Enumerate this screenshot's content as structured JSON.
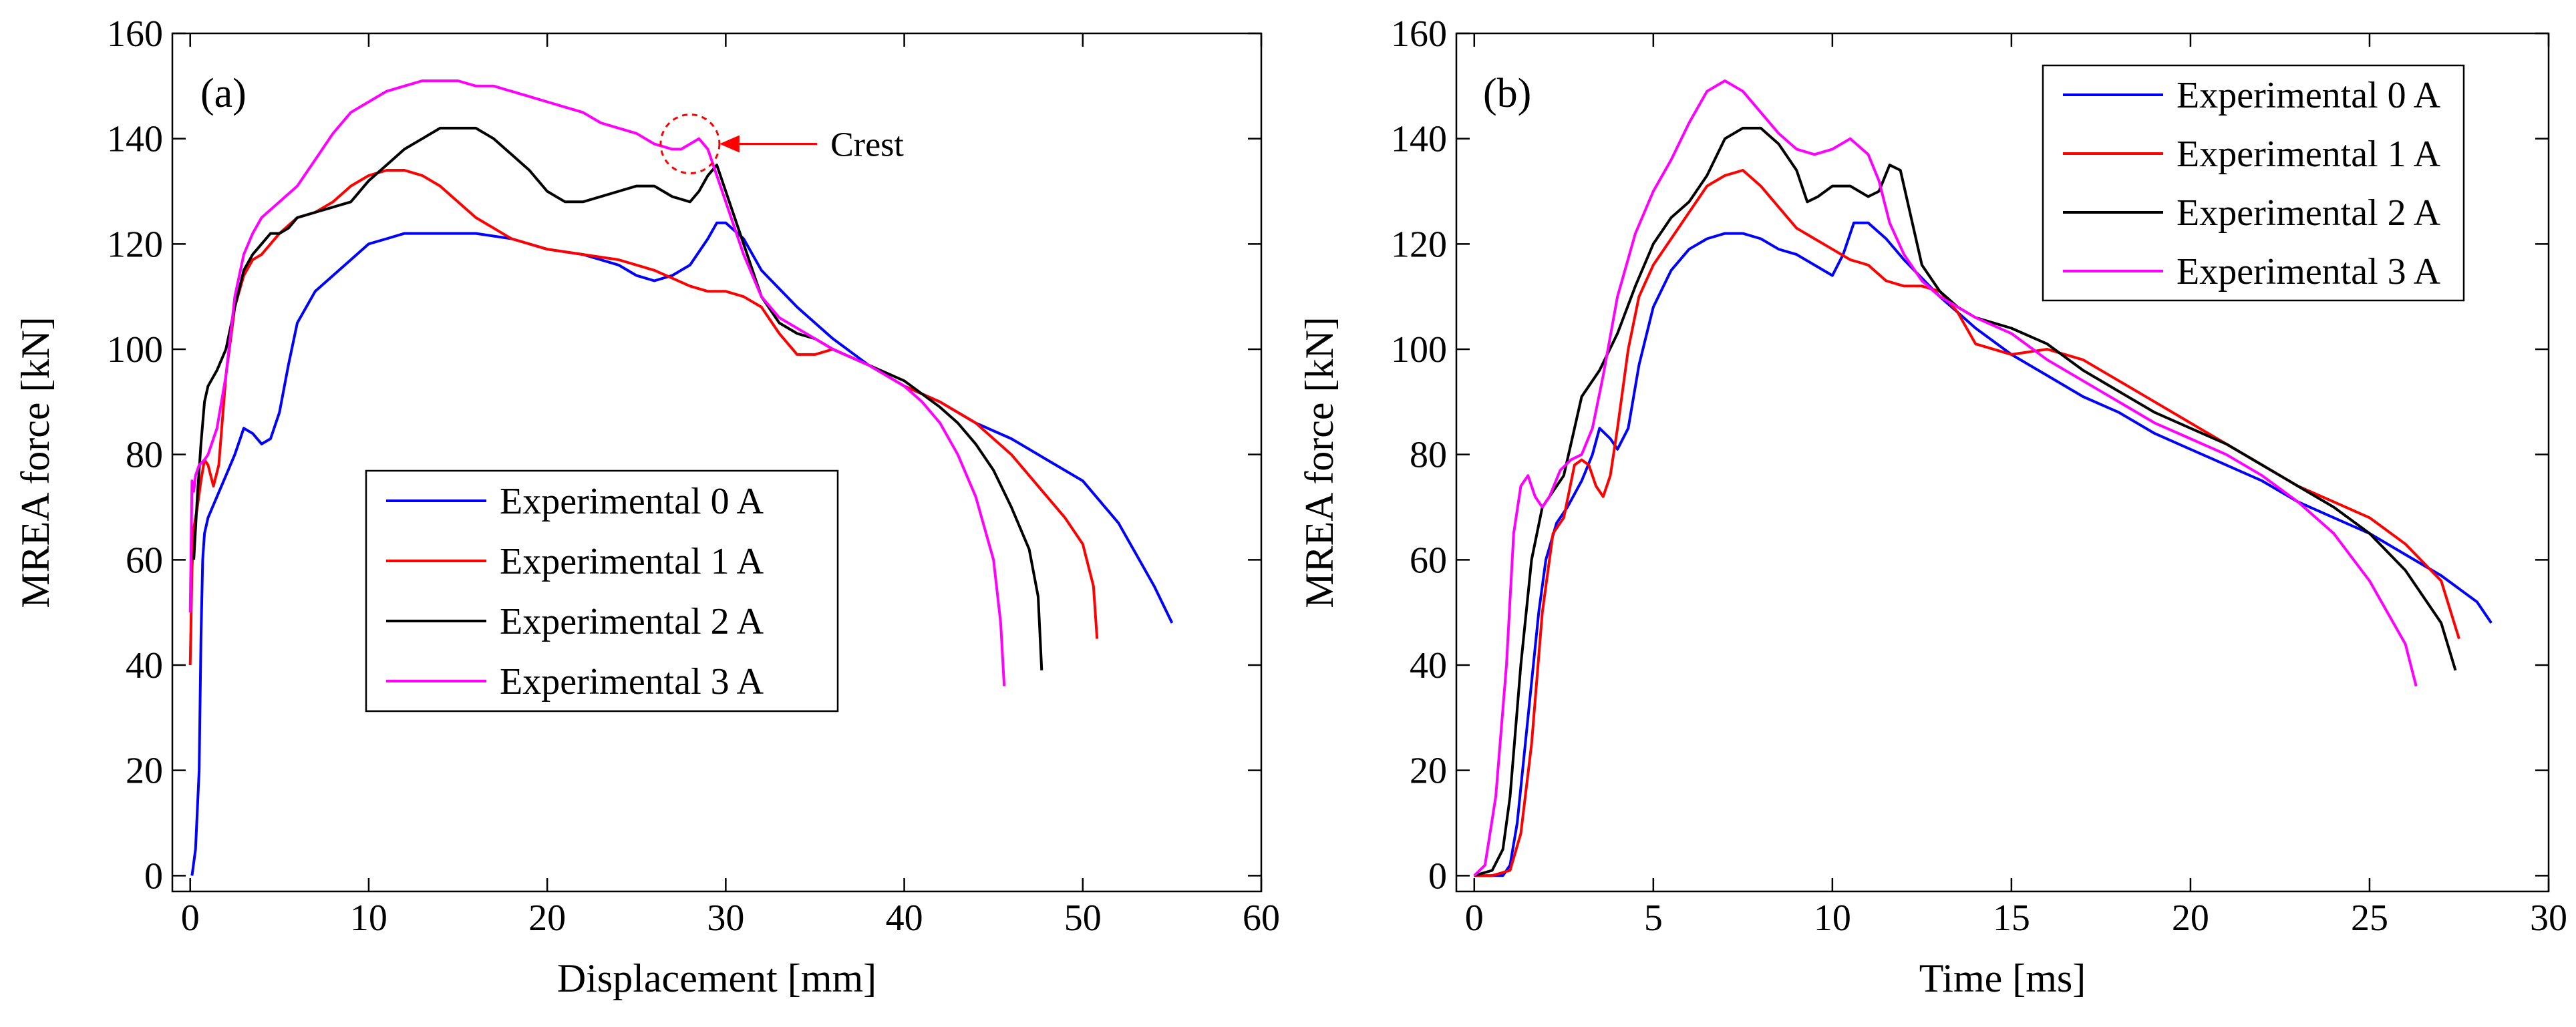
{
  "chart_data": [
    {
      "type": "line",
      "panel_label": "(a)",
      "xlabel": "Displacement [mm]",
      "ylabel": "MREA force [kN]",
      "xlim": [
        -1,
        60
      ],
      "ylim": [
        -3,
        160
      ],
      "xticks": [
        0,
        10,
        20,
        30,
        40,
        50,
        60
      ],
      "yticks": [
        0,
        20,
        40,
        60,
        80,
        100,
        120,
        140,
        160
      ],
      "legend_position": "center-left",
      "annotation": {
        "text": "Crest",
        "color": "#ff0000",
        "target": [
          28,
          139
        ],
        "label_at": [
          31,
          139
        ]
      },
      "series": [
        {
          "name": "Experimental 0 A",
          "color": "#0000ff",
          "x": [
            0.1,
            0.3,
            0.5,
            0.6,
            0.7,
            0.8,
            1.0,
            1.5,
            2.0,
            2.5,
            3.0,
            3.5,
            4.0,
            4.5,
            5.0,
            5.5,
            6.0,
            7.0,
            8.0,
            9.0,
            10.0,
            11.0,
            12.0,
            14.0,
            16.0,
            18.0,
            20.0,
            22.0,
            24.0,
            25.0,
            26.0,
            27.0,
            28.0,
            29.0,
            29.5,
            30.0,
            31.0,
            32.0,
            34.0,
            36.0,
            38.0,
            40.0,
            42.0,
            44.0,
            46.0,
            48.0,
            50.0,
            52.0,
            53.0,
            54.0,
            55.0
          ],
          "y": [
            0,
            5,
            20,
            45,
            60,
            65,
            68,
            72,
            76,
            80,
            85,
            84,
            82,
            83,
            88,
            97,
            105,
            111,
            114,
            117,
            120,
            121,
            122,
            122,
            122,
            121,
            119,
            118,
            116,
            114,
            113,
            114,
            116,
            121,
            124,
            124,
            121,
            115,
            108,
            102,
            97,
            93,
            90,
            86,
            83,
            79,
            75,
            67,
            61,
            55,
            48
          ]
        },
        {
          "name": "Experimental 1 A",
          "color": "#ff0000",
          "x": [
            0.0,
            0.1,
            0.2,
            0.4,
            0.6,
            0.8,
            1.0,
            1.3,
            1.6,
            2.0,
            2.5,
            3.0,
            3.5,
            4.0,
            5.0,
            6.0,
            7.0,
            8.0,
            9.0,
            10.0,
            11.0,
            12.0,
            13.0,
            14.0,
            15.0,
            16.0,
            17.0,
            18.0,
            20.0,
            22.0,
            24.0,
            26.0,
            28.0,
            29.0,
            30.0,
            31.0,
            32.0,
            33.0,
            34.0,
            35.0,
            36.0,
            38.0,
            40.0,
            42.0,
            44.0,
            46.0,
            48.0,
            49.0,
            50.0,
            50.6,
            50.8
          ],
          "y": [
            40,
            58,
            66,
            70,
            75,
            79,
            78,
            74,
            78,
            95,
            108,
            114,
            117,
            118,
            122,
            125,
            126,
            128,
            131,
            133,
            134,
            134,
            133,
            131,
            128,
            125,
            123,
            121,
            119,
            118,
            117,
            115,
            112,
            111,
            111,
            110,
            108,
            103,
            99,
            99,
            100,
            97,
            93,
            90,
            86,
            80,
            72,
            68,
            63,
            55,
            45
          ]
        },
        {
          "name": "Experimental 2 A",
          "color": "#000000",
          "x": [
            0.2,
            0.4,
            0.6,
            0.8,
            1.0,
            1.5,
            2.0,
            2.5,
            3.0,
            3.5,
            4.0,
            4.5,
            5.0,
            5.5,
            6.0,
            7.0,
            8.0,
            9.0,
            10.0,
            11.0,
            12.0,
            13.0,
            14.0,
            15.0,
            16.0,
            17.0,
            18.0,
            19.0,
            20.0,
            21.0,
            22.0,
            23.0,
            24.0,
            25.0,
            26.0,
            27.0,
            28.0,
            28.5,
            29.0,
            29.5,
            30.0,
            31.0,
            32.0,
            33.0,
            34.0,
            35.0,
            36.0,
            38.0,
            40.0,
            42.0,
            43.0,
            44.0,
            45.0,
            46.0,
            47.0,
            47.5,
            47.7
          ],
          "y": [
            60,
            72,
            82,
            90,
            93,
            96,
            100,
            108,
            115,
            118,
            120,
            122,
            122,
            123,
            125,
            126,
            127,
            128,
            132,
            135,
            138,
            140,
            142,
            142,
            142,
            140,
            137,
            134,
            130,
            128,
            128,
            129,
            130,
            131,
            131,
            129,
            128,
            130,
            133,
            135,
            130,
            120,
            110,
            105,
            103,
            102,
            100,
            97,
            94,
            89,
            86,
            82,
            77,
            70,
            62,
            53,
            39
          ]
        },
        {
          "name": "Experimental 3 A",
          "color": "#ff00ff",
          "x": [
            0.0,
            0.1,
            0.2,
            0.3,
            0.5,
            0.8,
            1.0,
            1.5,
            2.0,
            2.5,
            3.0,
            3.5,
            4.0,
            5.0,
            6.0,
            7.0,
            8.0,
            9.0,
            10.0,
            11.0,
            12.0,
            13.0,
            14.0,
            15.0,
            16.0,
            17.0,
            18.0,
            19.0,
            20.0,
            21.0,
            22.0,
            23.0,
            24.0,
            25.0,
            26.0,
            27.0,
            27.5,
            28.0,
            28.5,
            29.0,
            30.0,
            31.0,
            32.0,
            33.0,
            34.0,
            35.0,
            36.0,
            38.0,
            40.0,
            41.0,
            42.0,
            43.0,
            44.0,
            45.0,
            45.4,
            45.6
          ],
          "y": [
            50,
            75,
            73,
            76,
            78,
            79,
            80,
            85,
            95,
            110,
            118,
            122,
            125,
            128,
            131,
            136,
            141,
            145,
            147,
            149,
            150,
            151,
            151,
            151,
            150,
            150,
            149,
            148,
            147,
            146,
            145,
            143,
            142,
            141,
            139,
            138,
            138,
            139,
            140,
            138,
            128,
            118,
            110,
            106,
            104,
            102,
            100,
            97,
            93,
            90,
            86,
            80,
            72,
            60,
            48,
            36
          ]
        }
      ]
    },
    {
      "type": "line",
      "panel_label": "(b)",
      "xlabel": "Time [ms]",
      "ylabel": "MREA force [kN]",
      "xlim": [
        -0.5,
        30
      ],
      "ylim": [
        -3,
        160
      ],
      "xticks": [
        0,
        5,
        10,
        15,
        20,
        25,
        30
      ],
      "yticks": [
        0,
        20,
        40,
        60,
        80,
        100,
        120,
        140,
        160
      ],
      "legend_position": "top-right",
      "series": [
        {
          "name": "Experimental 0 A",
          "color": "#0000ff",
          "x": [
            0.0,
            0.8,
            1.0,
            1.2,
            1.5,
            1.8,
            2.0,
            2.3,
            2.6,
            3.0,
            3.3,
            3.5,
            3.8,
            4.0,
            4.3,
            4.6,
            5.0,
            5.5,
            6.0,
            6.5,
            7.0,
            7.5,
            8.0,
            8.5,
            9.0,
            9.5,
            10.0,
            10.3,
            10.6,
            11.0,
            11.5,
            12.0,
            13.0,
            14.0,
            15.0,
            16.0,
            17.0,
            18.0,
            19.0,
            20.0,
            21.0,
            22.0,
            23.0,
            24.0,
            25.0,
            26.0,
            27.0,
            28.0,
            28.4
          ],
          "y": [
            0,
            0,
            2,
            10,
            30,
            50,
            60,
            67,
            70,
            75,
            80,
            85,
            83,
            81,
            85,
            97,
            108,
            115,
            119,
            121,
            122,
            122,
            121,
            119,
            118,
            116,
            114,
            118,
            124,
            124,
            121,
            117,
            110,
            104,
            99,
            95,
            91,
            88,
            84,
            81,
            78,
            75,
            71,
            68,
            65,
            61,
            57,
            52,
            48
          ]
        },
        {
          "name": "Experimental 1 A",
          "color": "#ff0000",
          "x": [
            0.0,
            0.5,
            1.0,
            1.3,
            1.6,
            1.9,
            2.2,
            2.5,
            2.8,
            3.0,
            3.2,
            3.4,
            3.6,
            3.8,
            4.0,
            4.3,
            4.6,
            5.0,
            5.5,
            6.0,
            6.5,
            7.0,
            7.5,
            8.0,
            8.5,
            9.0,
            9.5,
            10.0,
            10.5,
            11.0,
            11.5,
            12.0,
            12.5,
            13.0,
            13.5,
            14.0,
            15.0,
            16.0,
            17.0,
            18.0,
            19.0,
            20.0,
            21.0,
            22.0,
            23.0,
            24.0,
            25.0,
            26.0,
            27.0,
            27.5
          ],
          "y": [
            0,
            0,
            1,
            8,
            25,
            50,
            65,
            68,
            78,
            79,
            78,
            74,
            72,
            76,
            85,
            100,
            110,
            116,
            121,
            126,
            131,
            133,
            134,
            131,
            127,
            123,
            121,
            119,
            117,
            116,
            113,
            112,
            112,
            111,
            107,
            101,
            99,
            100,
            98,
            94,
            90,
            86,
            82,
            78,
            74,
            71,
            68,
            63,
            56,
            45
          ]
        },
        {
          "name": "Experimental 2 A",
          "color": "#000000",
          "x": [
            0.0,
            0.5,
            0.8,
            1.0,
            1.3,
            1.6,
            1.9,
            2.2,
            2.5,
            2.8,
            3.0,
            3.5,
            4.0,
            4.5,
            5.0,
            5.5,
            6.0,
            6.5,
            7.0,
            7.5,
            8.0,
            8.5,
            9.0,
            9.3,
            9.6,
            10.0,
            10.5,
            11.0,
            11.3,
            11.6,
            11.9,
            12.2,
            12.5,
            13.0,
            13.5,
            14.0,
            15.0,
            16.0,
            17.0,
            18.0,
            19.0,
            20.0,
            21.0,
            22.0,
            23.0,
            24.0,
            25.0,
            26.0,
            27.0,
            27.4
          ],
          "y": [
            0,
            1,
            5,
            15,
            40,
            60,
            70,
            73,
            76,
            85,
            91,
            96,
            103,
            112,
            120,
            125,
            128,
            133,
            140,
            142,
            142,
            139,
            134,
            128,
            129,
            131,
            131,
            129,
            130,
            135,
            134,
            125,
            116,
            111,
            108,
            106,
            104,
            101,
            96,
            92,
            88,
            85,
            82,
            78,
            74,
            70,
            65,
            58,
            48,
            39
          ]
        },
        {
          "name": "Experimental 3 A",
          "color": "#ff00ff",
          "x": [
            0.0,
            0.3,
            0.6,
            0.9,
            1.1,
            1.3,
            1.5,
            1.7,
            1.9,
            2.1,
            2.4,
            2.7,
            3.0,
            3.3,
            3.6,
            4.0,
            4.5,
            5.0,
            5.5,
            6.0,
            6.5,
            7.0,
            7.5,
            8.0,
            8.5,
            9.0,
            9.5,
            10.0,
            10.5,
            11.0,
            11.3,
            11.6,
            12.0,
            12.5,
            13.0,
            14.0,
            15.0,
            16.0,
            17.0,
            18.0,
            19.0,
            20.0,
            21.0,
            22.0,
            23.0,
            24.0,
            25.0,
            26.0,
            26.3
          ],
          "y": [
            0,
            2,
            15,
            40,
            65,
            74,
            76,
            72,
            70,
            72,
            77,
            79,
            80,
            85,
            95,
            110,
            122,
            130,
            136,
            143,
            149,
            151,
            149,
            145,
            141,
            138,
            137,
            138,
            140,
            137,
            132,
            124,
            118,
            113,
            110,
            106,
            103,
            98,
            94,
            90,
            86,
            83,
            80,
            76,
            71,
            65,
            56,
            44,
            36
          ]
        }
      ]
    }
  ]
}
